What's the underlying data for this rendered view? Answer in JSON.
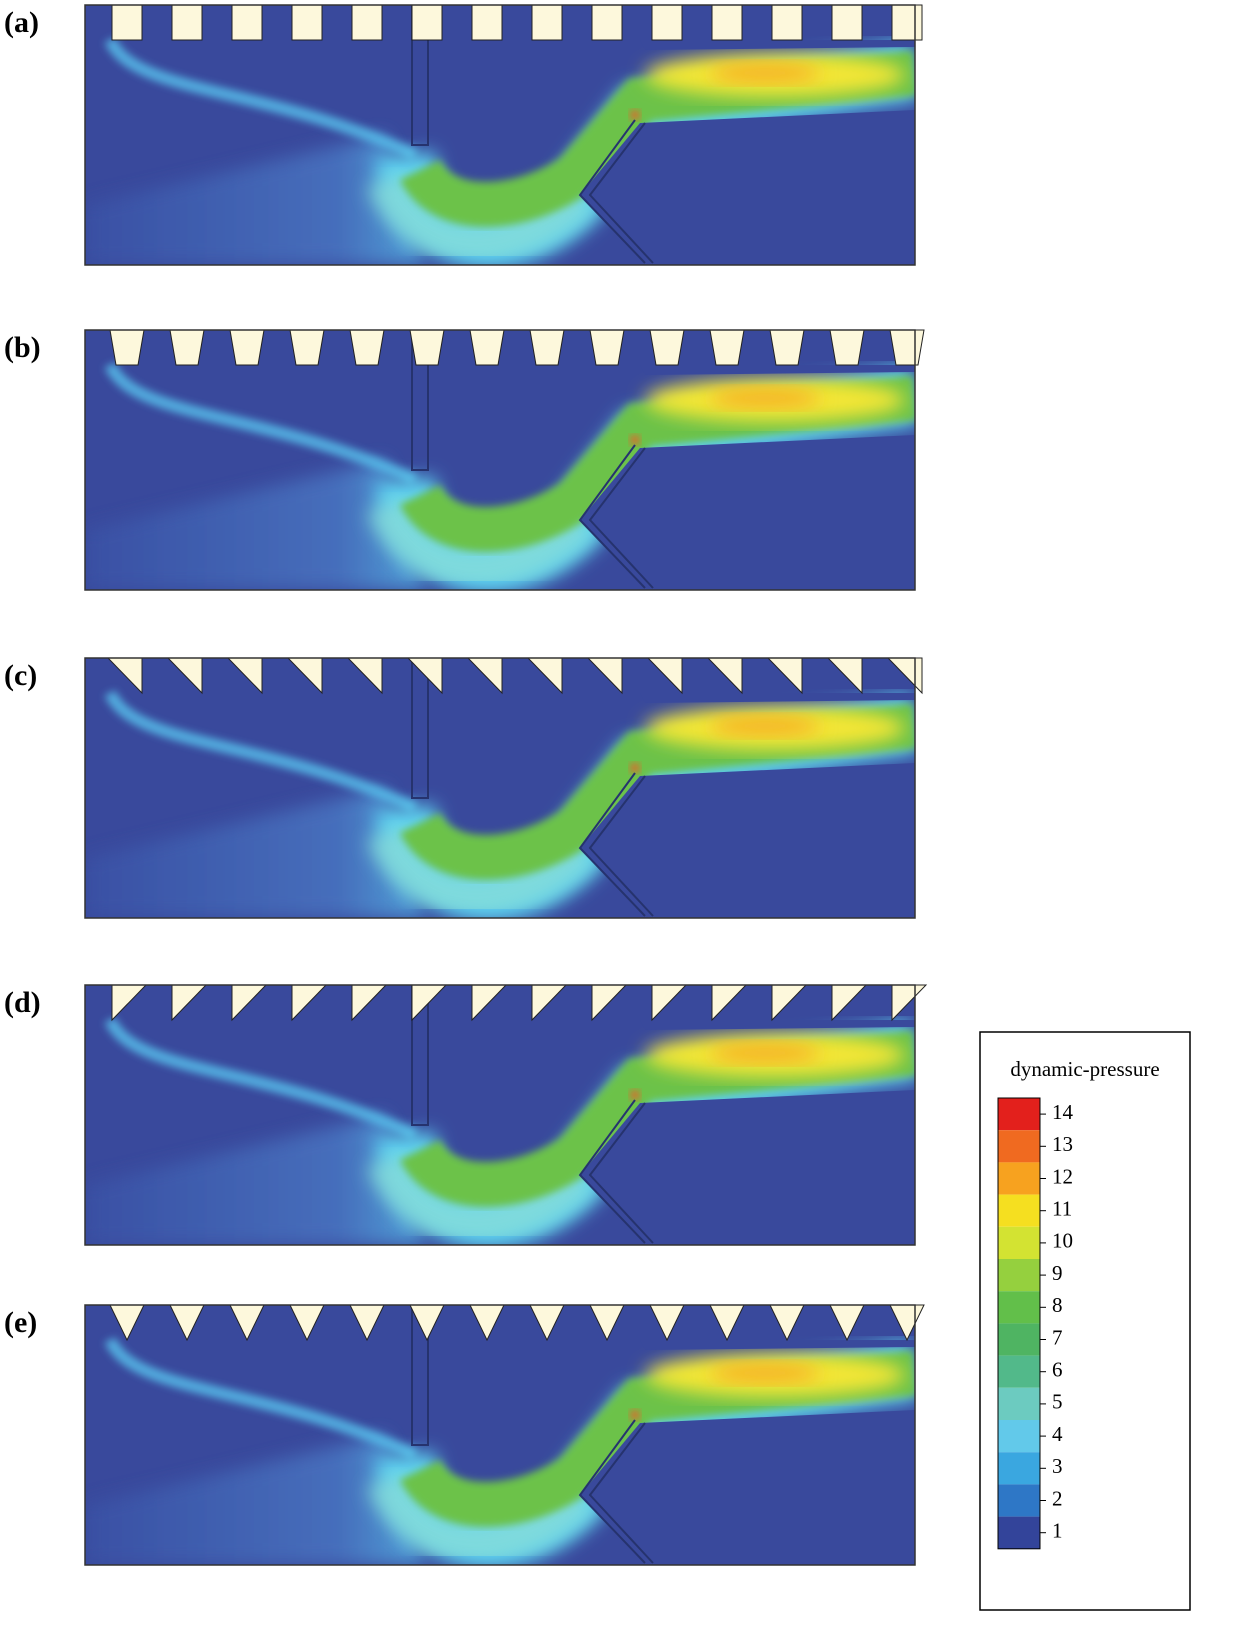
{
  "panels": [
    {
      "label": "(a)"
    },
    {
      "label": "(b)"
    },
    {
      "label": "(c)"
    },
    {
      "label": "(d)"
    },
    {
      "label": "(e)"
    }
  ],
  "legend": {
    "title": "dynamic-pressure",
    "levels": [
      14,
      13,
      12,
      11,
      10,
      9,
      8,
      7,
      6,
      5,
      4,
      3,
      2,
      1
    ]
  }
}
